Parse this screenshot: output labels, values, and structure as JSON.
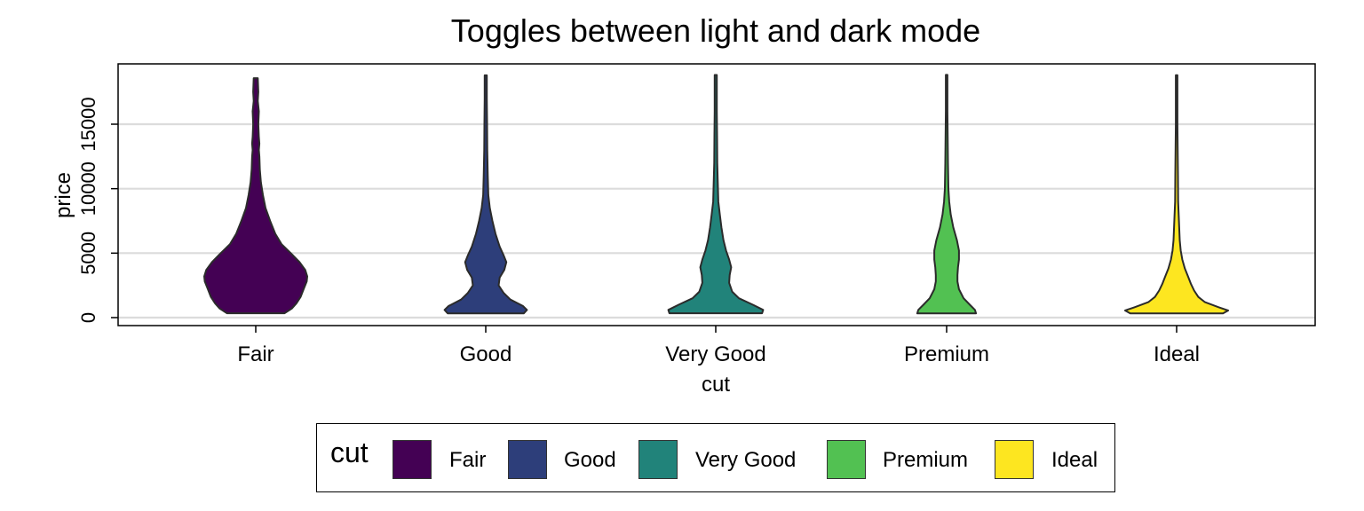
{
  "chart_data": {
    "type": "violin",
    "title": "Toggles between light and dark mode",
    "xlabel": "cut",
    "ylabel": "price",
    "categories": [
      "Fair",
      "Good",
      "Very Good",
      "Premium",
      "Ideal"
    ],
    "colors": [
      "#440154",
      "#2d3e7a",
      "#21837a",
      "#52c152",
      "#fde620"
    ],
    "y_ticks": [
      0,
      5000,
      10000,
      15000
    ],
    "y_tick_labels": [
      "0",
      "5000",
      "10000",
      "15000"
    ],
    "ylim": [
      -600,
      19800
    ],
    "grid": "horizontal",
    "legend_position": "bottom",
    "violins": [
      {
        "category": "Fair",
        "min": 337,
        "max": 18574,
        "profile": [
          [
            337,
            0.56
          ],
          [
            700,
            0.7
          ],
          [
            1100,
            0.79
          ],
          [
            1600,
            0.87
          ],
          [
            2200,
            0.93
          ],
          [
            2800,
            0.99
          ],
          [
            3200,
            1.0
          ],
          [
            3700,
            0.96
          ],
          [
            4300,
            0.85
          ],
          [
            5000,
            0.68
          ],
          [
            5700,
            0.5
          ],
          [
            6500,
            0.38
          ],
          [
            7500,
            0.28
          ],
          [
            8500,
            0.19
          ],
          [
            9500,
            0.14
          ],
          [
            10500,
            0.1
          ],
          [
            11500,
            0.08
          ],
          [
            12500,
            0.07
          ],
          [
            13000,
            0.06
          ],
          [
            13500,
            0.07
          ],
          [
            14000,
            0.06
          ],
          [
            15000,
            0.05
          ],
          [
            16000,
            0.06
          ],
          [
            16800,
            0.04
          ],
          [
            17500,
            0.05
          ],
          [
            18574,
            0.04
          ]
        ]
      },
      {
        "category": "Good",
        "min": 327,
        "max": 18788,
        "profile": [
          [
            327,
            0.74
          ],
          [
            600,
            0.8
          ],
          [
            900,
            0.72
          ],
          [
            1400,
            0.48
          ],
          [
            1900,
            0.35
          ],
          [
            2500,
            0.25
          ],
          [
            3100,
            0.27
          ],
          [
            3700,
            0.36
          ],
          [
            4300,
            0.4
          ],
          [
            4800,
            0.35
          ],
          [
            5500,
            0.27
          ],
          [
            6500,
            0.19
          ],
          [
            7500,
            0.13
          ],
          [
            8500,
            0.08
          ],
          [
            9500,
            0.05
          ],
          [
            11000,
            0.04
          ],
          [
            13000,
            0.03
          ],
          [
            15000,
            0.025
          ],
          [
            17000,
            0.02
          ],
          [
            18788,
            0.02
          ]
        ]
      },
      {
        "category": "Very Good",
        "min": 336,
        "max": 18818,
        "profile": [
          [
            336,
            0.9
          ],
          [
            600,
            0.92
          ],
          [
            1000,
            0.72
          ],
          [
            1500,
            0.45
          ],
          [
            2000,
            0.32
          ],
          [
            2700,
            0.26
          ],
          [
            3300,
            0.27
          ],
          [
            3900,
            0.3
          ],
          [
            4500,
            0.26
          ],
          [
            5200,
            0.2
          ],
          [
            6000,
            0.15
          ],
          [
            7000,
            0.11
          ],
          [
            8000,
            0.08
          ],
          [
            9000,
            0.05
          ],
          [
            10500,
            0.04
          ],
          [
            12000,
            0.03
          ],
          [
            14000,
            0.025
          ],
          [
            16000,
            0.02
          ],
          [
            18818,
            0.02
          ]
        ]
      },
      {
        "category": "Premium",
        "min": 326,
        "max": 18823,
        "profile": [
          [
            326,
            0.57
          ],
          [
            600,
            0.55
          ],
          [
            1000,
            0.45
          ],
          [
            1500,
            0.33
          ],
          [
            2200,
            0.24
          ],
          [
            2800,
            0.21
          ],
          [
            3300,
            0.21
          ],
          [
            3900,
            0.22
          ],
          [
            4500,
            0.24
          ],
          [
            5200,
            0.24
          ],
          [
            6000,
            0.2
          ],
          [
            7000,
            0.13
          ],
          [
            8000,
            0.08
          ],
          [
            9000,
            0.05
          ],
          [
            10000,
            0.035
          ],
          [
            12000,
            0.025
          ],
          [
            14000,
            0.02
          ],
          [
            16000,
            0.015
          ],
          [
            18823,
            0.015
          ]
        ]
      },
      {
        "category": "Ideal",
        "min": 326,
        "max": 18806,
        "profile": [
          [
            326,
            0.9
          ],
          [
            550,
            1.0
          ],
          [
            800,
            0.82
          ],
          [
            1200,
            0.55
          ],
          [
            1600,
            0.42
          ],
          [
            2100,
            0.34
          ],
          [
            2600,
            0.28
          ],
          [
            3200,
            0.22
          ],
          [
            3800,
            0.16
          ],
          [
            4500,
            0.11
          ],
          [
            5200,
            0.08
          ],
          [
            6000,
            0.06
          ],
          [
            7000,
            0.05
          ],
          [
            8000,
            0.04
          ],
          [
            9000,
            0.03
          ],
          [
            11000,
            0.025
          ],
          [
            13000,
            0.02
          ],
          [
            15000,
            0.015
          ],
          [
            18806,
            0.015
          ]
        ]
      }
    ]
  },
  "legend": {
    "title": "cut",
    "items": [
      {
        "label": "Fair",
        "color": "#440154"
      },
      {
        "label": "Good",
        "color": "#2d3e7a"
      },
      {
        "label": "Very Good",
        "color": "#21837a"
      },
      {
        "label": "Premium",
        "color": "#52c152"
      },
      {
        "label": "Ideal",
        "color": "#fde620"
      }
    ]
  }
}
